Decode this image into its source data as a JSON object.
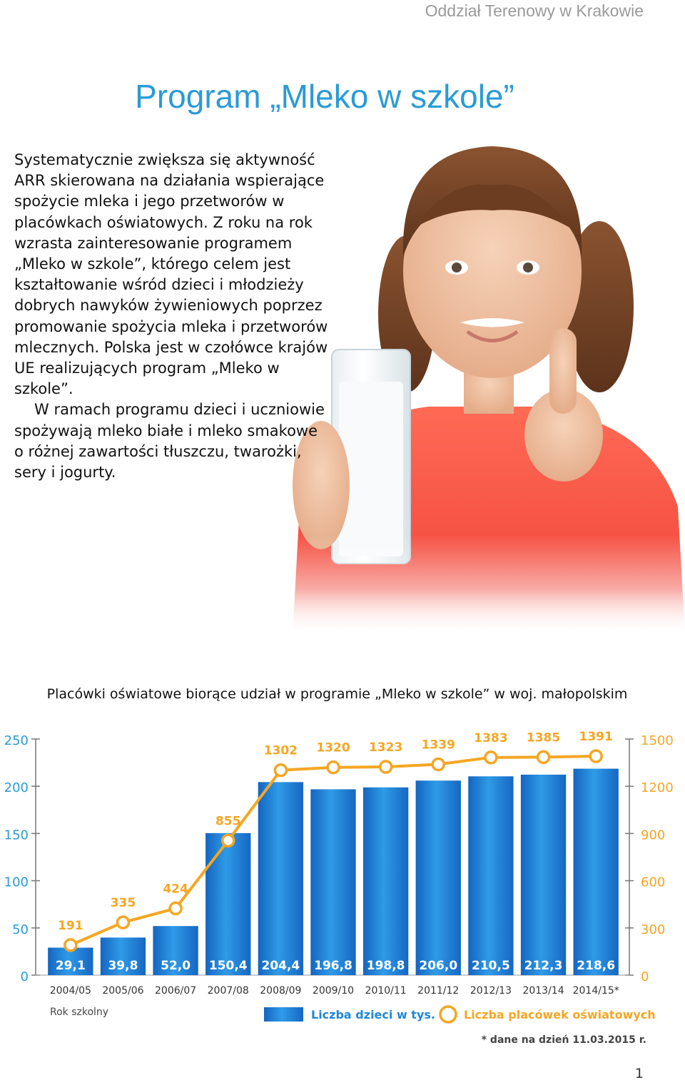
{
  "header": {
    "office": "Oddział Terenowy w Krakowie"
  },
  "title": "Program „Mleko w szkole”",
  "body": {
    "paragraph1": "Systematycznie zwiększa się aktywność ARR skierowana na działania wspierające spożycie mleka i jego przetworów w placówkach oświatowych. Z roku na rok wzrasta zainteresowanie programem „Mleko w szkole”, którego celem jest kształtowanie wśród dzieci i młodzieży dobrych nawyków żywieniowych poprzez promowanie spożycia mleka i przetworów mlecznych. Polska jest w czołówce krajów UE realizujących program „Mleko w szkole”.",
    "paragraph2": "W ramach programu dzieci i uczniowie spożywają mleko białe i mleko smakowe o różnej zawartości tłuszczu, twarożki, sery i jogurty."
  },
  "chart_title": "Placówki oświatowe biorące udział w programie „Mleko w szkole” w woj. małopolskim",
  "chart_data": {
    "type": "bar",
    "categories": [
      "2004/05",
      "2005/06",
      "2006/07",
      "2007/08",
      "2008/09",
      "2009/10",
      "2010/11",
      "2011/12",
      "2012/13",
      "2013/14",
      "2014/15*"
    ],
    "xlabel": "Rok szkolny",
    "series": [
      {
        "name": "Liczba dzieci w tys.",
        "type": "bar",
        "axis": "left",
        "values": [
          29.1,
          39.8,
          52.0,
          150.4,
          204.4,
          196.8,
          198.8,
          206.0,
          210.5,
          212.3,
          218.6
        ],
        "labels": [
          "29,1",
          "39,8",
          "52,0",
          "150,4",
          "204,4",
          "196,8",
          "198,8",
          "206,0",
          "210,5",
          "212,3",
          "218,6"
        ],
        "color": "#1e88d6"
      },
      {
        "name": "Liczba placówek oświatowych",
        "type": "line",
        "axis": "right",
        "values": [
          191,
          335,
          424,
          855,
          1302,
          1320,
          1323,
          1339,
          1383,
          1385,
          1391
        ],
        "labels": [
          "191",
          "335",
          "424",
          "855",
          "1302",
          "1320",
          "1323",
          "1339",
          "1383",
          "1385",
          "1391"
        ],
        "color": "#f5a623"
      }
    ],
    "y_left": {
      "range": [
        0,
        250
      ],
      "ticks": [
        "0",
        "50",
        "100",
        "150",
        "200",
        "250"
      ],
      "values": [
        0,
        50,
        100,
        150,
        200,
        250
      ]
    },
    "y_right": {
      "range": [
        0,
        1500
      ],
      "ticks": [
        "0",
        "300",
        "600",
        "900",
        "1200",
        "1500"
      ],
      "values": [
        0,
        300,
        600,
        900,
        1200,
        1500
      ]
    },
    "legend_placement": "bottom",
    "footnote": "* dane na dzień 11.03.2015 r.",
    "grid": false
  },
  "page_number": "1"
}
